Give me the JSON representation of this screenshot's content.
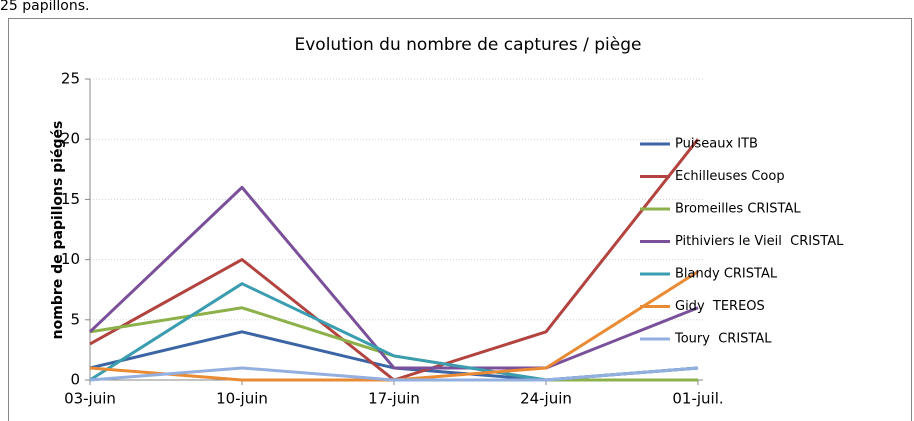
{
  "intro_text": "25 papillons.",
  "chart_data": {
    "type": "line",
    "title": "Evolution du nombre de captures / piège",
    "y_label": "nombre de papillons piégés",
    "categories": [
      "03-juin",
      "10-juin",
      "17-juin",
      "24-juin",
      "01-juil."
    ],
    "ylim": [
      0,
      25
    ],
    "yticks": [
      0,
      5,
      10,
      15,
      20,
      25
    ],
    "grid": true,
    "legend": "right",
    "series": [
      {
        "name": "Puiseaux ITB",
        "color": "#3c65a6",
        "values": [
          1,
          4,
          1,
          0,
          1
        ]
      },
      {
        "name": "Echilleuses Coop",
        "color": "#b2433f",
        "values": [
          3,
          10,
          0,
          4,
          20
        ]
      },
      {
        "name": "Bromeilles CRISTAL",
        "color": "#8cb14b",
        "values": [
          4,
          6,
          2,
          0,
          0
        ]
      },
      {
        "name": "Pithiviers le Vieil  CRISTAL",
        "color": "#7a509b",
        "values": [
          4,
          16,
          1,
          1,
          6
        ]
      },
      {
        "name": "Blandy CRISTAL",
        "color": "#3a9db0",
        "values": [
          0,
          8,
          2,
          0,
          1
        ]
      },
      {
        "name": "Gidy  TEREOS",
        "color": "#e98b35",
        "values": [
          1,
          0,
          0,
          1,
          9
        ]
      },
      {
        "name": "Toury  CRISTAL",
        "color": "#93afdf",
        "values": [
          0,
          1,
          0,
          0,
          1
        ]
      }
    ]
  }
}
